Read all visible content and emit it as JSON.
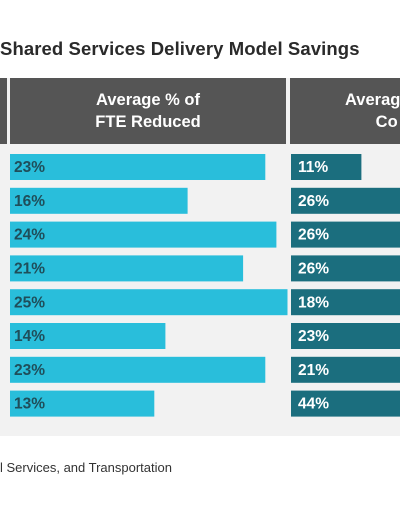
{
  "title": "Shared Services Delivery Model Savings",
  "column_headers": {
    "fte": [
      "Average % of",
      "FTE Reduced"
    ],
    "cost": [
      "Averag",
      "Co"
    ]
  },
  "footnote": "l Services, and Transportation",
  "colors": {
    "fte_bar": "#29BEDB",
    "cost_bar": "#1B6E7E",
    "header_bg": "#555555",
    "panel_bg": "#F2F2F2",
    "label_fte": "#1F4E5A",
    "label_cost": "#FFFFFF"
  },
  "chart_data": {
    "type": "bar",
    "orientation": "horizontal",
    "title": "Shared Services Delivery Model Savings",
    "series": [
      {
        "name": "Average % of FTE Reduced",
        "values": [
          23,
          16,
          24,
          21,
          25,
          14,
          23,
          13
        ],
        "labels": [
          "23%",
          "16%",
          "24%",
          "21%",
          "25%",
          "14%",
          "23%",
          "13%"
        ]
      },
      {
        "name": "Average % Cost",
        "values": [
          11,
          26,
          26,
          26,
          18,
          23,
          21,
          44
        ],
        "labels": [
          "11%",
          "26%",
          "26%",
          "26%",
          "18%",
          "23%",
          "21%",
          "44%"
        ]
      }
    ],
    "grid": false,
    "legend": "none"
  }
}
